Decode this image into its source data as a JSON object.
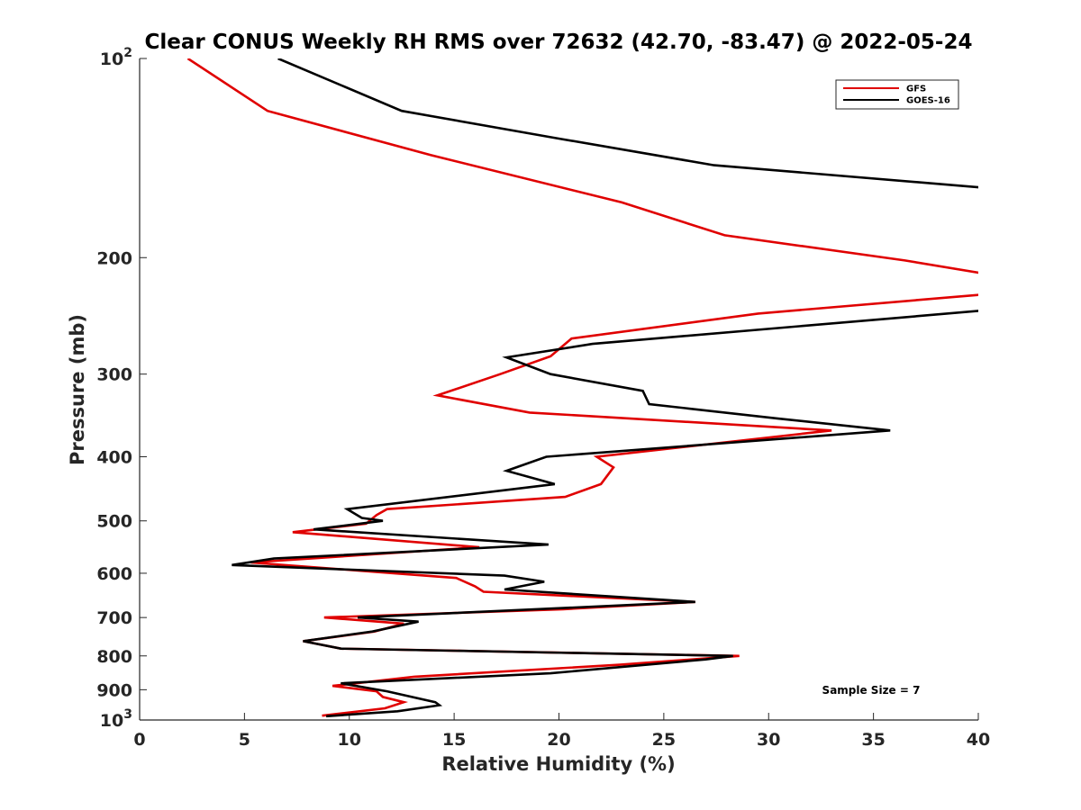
{
  "chart_data": {
    "type": "line",
    "title": "Clear CONUS Weekly RH RMS over 72632 (42.70, -83.47) @ 2022-05-24",
    "xlabel": "Relative Humidity (%)",
    "ylabel": "Pressure (mb)",
    "xlim": [
      0,
      40
    ],
    "ylim": [
      100,
      1000
    ],
    "y_scale": "log",
    "y_reversed": true,
    "x_ticks": [
      "0",
      "5",
      "10",
      "15",
      "20",
      "25",
      "30",
      "35",
      "40"
    ],
    "x_tick_values": [
      0,
      5,
      10,
      15,
      20,
      25,
      30,
      35,
      40
    ],
    "y_ticks": [
      {
        "value": 100,
        "base": "10",
        "exp": "2"
      },
      {
        "value": 200,
        "label": "200"
      },
      {
        "value": 300,
        "label": "300"
      },
      {
        "value": 400,
        "label": "400"
      },
      {
        "value": 500,
        "label": "500"
      },
      {
        "value": 600,
        "label": "600"
      },
      {
        "value": 700,
        "label": "700"
      },
      {
        "value": 800,
        "label": "800"
      },
      {
        "value": 900,
        "label": "900"
      },
      {
        "value": 1000,
        "base": "10",
        "exp": "3"
      }
    ],
    "grid": false,
    "legend_position": "top-right",
    "annotation": "Sample Size = 7",
    "series": [
      {
        "name": "GFS",
        "color": "#e00000",
        "points": [
          [
            2.3,
            100
          ],
          [
            6.1,
            120
          ],
          [
            13.9,
            140
          ],
          [
            23.0,
            165
          ],
          [
            27.9,
            185
          ],
          [
            36.5,
            202
          ],
          [
            40.5,
            212
          ],
          [
            40.5,
            227
          ],
          [
            29.5,
            243
          ],
          [
            20.6,
            265
          ],
          [
            19.6,
            282
          ],
          [
            17.2,
            300
          ],
          [
            14.2,
            323
          ],
          [
            18.6,
            343
          ],
          [
            33.0,
            365
          ],
          [
            21.8,
            400
          ],
          [
            22.6,
            415
          ],
          [
            22.0,
            440
          ],
          [
            20.3,
            460
          ],
          [
            11.8,
            480
          ],
          [
            11.3,
            490
          ],
          [
            10.8,
            505
          ],
          [
            7.3,
            520
          ],
          [
            16.2,
            548
          ],
          [
            5.3,
            578
          ],
          [
            15.1,
            610
          ],
          [
            16.0,
            628
          ],
          [
            16.4,
            640
          ],
          [
            26.5,
            663
          ],
          [
            20.2,
            680
          ],
          [
            8.8,
            700
          ],
          [
            12.6,
            715
          ],
          [
            11.2,
            735
          ],
          [
            7.8,
            760
          ],
          [
            9.6,
            780
          ],
          [
            28.6,
            800
          ],
          [
            22.9,
            825
          ],
          [
            13.1,
            860
          ],
          [
            9.2,
            888
          ],
          [
            11.3,
            905
          ],
          [
            11.6,
            923
          ],
          [
            12.6,
            940
          ],
          [
            11.7,
            960
          ],
          [
            8.7,
            985
          ]
        ]
      },
      {
        "name": "GOES-16",
        "color": "#000000",
        "points": [
          [
            6.6,
            100
          ],
          [
            12.5,
            120
          ],
          [
            19.9,
            132
          ],
          [
            27.4,
            145
          ],
          [
            40.5,
            157
          ],
          [
            40.5,
            240
          ],
          [
            21.6,
            270
          ],
          [
            17.5,
            283
          ],
          [
            19.6,
            300
          ],
          [
            24.0,
            318
          ],
          [
            24.3,
            333
          ],
          [
            30.4,
            350
          ],
          [
            35.8,
            365
          ],
          [
            19.4,
            400
          ],
          [
            17.5,
            420
          ],
          [
            19.8,
            440
          ],
          [
            9.9,
            480
          ],
          [
            10.6,
            495
          ],
          [
            11.6,
            500
          ],
          [
            8.3,
            515
          ],
          [
            19.5,
            543
          ],
          [
            6.4,
            570
          ],
          [
            4.4,
            583
          ],
          [
            17.4,
            605
          ],
          [
            19.3,
            618
          ],
          [
            17.4,
            635
          ],
          [
            26.5,
            663
          ],
          [
            10.4,
            700
          ],
          [
            13.3,
            710
          ],
          [
            11.1,
            735
          ],
          [
            7.8,
            760
          ],
          [
            9.6,
            780
          ],
          [
            28.3,
            800
          ],
          [
            27.0,
            810
          ],
          [
            19.6,
            850
          ],
          [
            9.6,
            880
          ],
          [
            11.8,
            905
          ],
          [
            14.1,
            940
          ],
          [
            14.3,
            950
          ],
          [
            12.3,
            970
          ],
          [
            8.9,
            987
          ]
        ]
      }
    ]
  }
}
